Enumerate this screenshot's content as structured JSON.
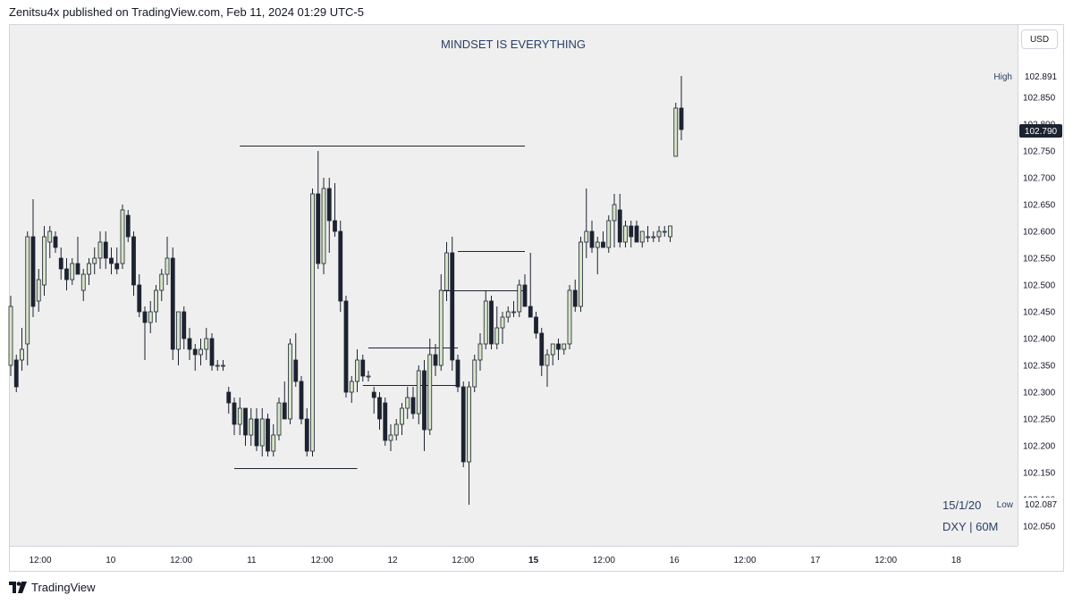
{
  "header": {
    "publisher": "Zenitsu4x published on TradingView.com, Feb 11, 2024 01:29 UTC-5"
  },
  "toolbar": {
    "currency": "USD"
  },
  "annotations": {
    "title_text": "MINDSET IS EVERYTHING",
    "date_label": "15/1/20",
    "symbol_label": "DXY | 60M"
  },
  "footer": {
    "brand": "TradingView"
  },
  "colors": {
    "up_body": "#d6e5c7",
    "down_body": "#1c2330",
    "wick": "#1c2330",
    "plot_bg": "#efefef",
    "title": "#2a3f66",
    "last_price_bg": "#1c2330"
  },
  "chart_data": {
    "type": "candlestick",
    "symbol": "DXY",
    "interval": "60M",
    "ylim": [
      102.0,
      102.92
    ],
    "y_ticks": [
      "102.850",
      "102.800",
      "102.750",
      "102.700",
      "102.650",
      "102.600",
      "102.550",
      "102.500",
      "102.450",
      "102.400",
      "102.350",
      "102.300",
      "102.250",
      "102.200",
      "102.150",
      "102.100",
      "102.050"
    ],
    "x_ticks": [
      "12:00",
      "10",
      "12:00",
      "11",
      "12:00",
      "12",
      "12:00",
      "15",
      "12:00",
      "16",
      "12:00",
      "17",
      "12:00",
      "18"
    ],
    "grid": false,
    "markers": {
      "high": {
        "label": "High",
        "value": "102.891"
      },
      "low": {
        "label": "Low",
        "value": "102.087"
      },
      "last": {
        "value": "102.790"
      }
    },
    "levels": [
      {
        "name": "high-level",
        "price": 102.76,
        "x_start": 41,
        "x_end": 92
      },
      {
        "name": "low-level",
        "price": 102.158,
        "x_start": 40,
        "x_end": 62
      },
      {
        "name": "support-level",
        "price": 102.563,
        "x_start": 80,
        "x_end": 92
      },
      {
        "name": "mid-level",
        "price": 102.49,
        "x_start": 77,
        "x_end": 92
      },
      {
        "name": "range-level",
        "price": 102.384,
        "x_start": 64,
        "x_end": 80
      },
      {
        "name": "base-level",
        "price": 102.313,
        "x_start": 63,
        "x_end": 80
      }
    ],
    "candles": [
      {
        "o": 102.35,
        "h": 102.48,
        "l": 102.33,
        "c": 102.46
      },
      {
        "o": 102.36,
        "h": 102.37,
        "l": 102.3,
        "c": 102.31
      },
      {
        "o": 102.36,
        "h": 102.42,
        "l": 102.34,
        "c": 102.38
      },
      {
        "o": 102.39,
        "h": 102.6,
        "l": 102.35,
        "c": 102.59
      },
      {
        "o": 102.59,
        "h": 102.66,
        "l": 102.44,
        "c": 102.46
      },
      {
        "o": 102.47,
        "h": 102.53,
        "l": 102.45,
        "c": 102.51
      },
      {
        "o": 102.5,
        "h": 102.61,
        "l": 102.48,
        "c": 102.59
      },
      {
        "o": 102.58,
        "h": 102.61,
        "l": 102.55,
        "c": 102.6
      },
      {
        "o": 102.59,
        "h": 102.6,
        "l": 102.56,
        "c": 102.57
      },
      {
        "o": 102.55,
        "h": 102.57,
        "l": 102.51,
        "c": 102.53
      },
      {
        "o": 102.53,
        "h": 102.55,
        "l": 102.49,
        "c": 102.51
      },
      {
        "o": 102.51,
        "h": 102.55,
        "l": 102.5,
        "c": 102.54
      },
      {
        "o": 102.54,
        "h": 102.59,
        "l": 102.52,
        "c": 102.52
      },
      {
        "o": 102.49,
        "h": 102.53,
        "l": 102.47,
        "c": 102.52
      },
      {
        "o": 102.52,
        "h": 102.55,
        "l": 102.5,
        "c": 102.54
      },
      {
        "o": 102.54,
        "h": 102.57,
        "l": 102.52,
        "c": 102.55
      },
      {
        "o": 102.55,
        "h": 102.6,
        "l": 102.53,
        "c": 102.58
      },
      {
        "o": 102.58,
        "h": 102.6,
        "l": 102.53,
        "c": 102.55
      },
      {
        "o": 102.55,
        "h": 102.57,
        "l": 102.52,
        "c": 102.54
      },
      {
        "o": 102.54,
        "h": 102.57,
        "l": 102.52,
        "c": 102.53
      },
      {
        "o": 102.54,
        "h": 102.65,
        "l": 102.53,
        "c": 102.64
      },
      {
        "o": 102.63,
        "h": 102.64,
        "l": 102.58,
        "c": 102.59
      },
      {
        "o": 102.59,
        "h": 102.6,
        "l": 102.48,
        "c": 102.5
      },
      {
        "o": 102.5,
        "h": 102.52,
        "l": 102.44,
        "c": 102.45
      },
      {
        "o": 102.45,
        "h": 102.46,
        "l": 102.36,
        "c": 102.43
      },
      {
        "o": 102.43,
        "h": 102.47,
        "l": 102.41,
        "c": 102.45
      },
      {
        "o": 102.45,
        "h": 102.5,
        "l": 102.43,
        "c": 102.49
      },
      {
        "o": 102.49,
        "h": 102.53,
        "l": 102.47,
        "c": 102.52
      },
      {
        "o": 102.52,
        "h": 102.59,
        "l": 102.5,
        "c": 102.55
      },
      {
        "o": 102.55,
        "h": 102.57,
        "l": 102.36,
        "c": 102.38
      },
      {
        "o": 102.38,
        "h": 102.45,
        "l": 102.35,
        "c": 102.45
      },
      {
        "o": 102.45,
        "h": 102.46,
        "l": 102.38,
        "c": 102.4
      },
      {
        "o": 102.4,
        "h": 102.42,
        "l": 102.36,
        "c": 102.38
      },
      {
        "o": 102.38,
        "h": 102.39,
        "l": 102.34,
        "c": 102.37
      },
      {
        "o": 102.37,
        "h": 102.4,
        "l": 102.35,
        "c": 102.38
      },
      {
        "o": 102.38,
        "h": 102.42,
        "l": 102.36,
        "c": 102.4
      },
      {
        "o": 102.4,
        "h": 102.41,
        "l": 102.34,
        "c": 102.35
      },
      {
        "o": 102.35,
        "h": 102.36,
        "l": 102.34,
        "c": 102.35
      },
      {
        "o": 102.35,
        "h": 102.36,
        "l": 102.34,
        "c": 102.35
      },
      {
        "o": 102.3,
        "h": 102.31,
        "l": 102.26,
        "c": 102.28
      },
      {
        "o": 102.28,
        "h": 102.29,
        "l": 102.22,
        "c": 102.24
      },
      {
        "o": 102.24,
        "h": 102.29,
        "l": 102.22,
        "c": 102.27
      },
      {
        "o": 102.27,
        "h": 102.27,
        "l": 102.2,
        "c": 102.22
      },
      {
        "o": 102.22,
        "h": 102.27,
        "l": 102.2,
        "c": 102.25
      },
      {
        "o": 102.25,
        "h": 102.27,
        "l": 102.19,
        "c": 102.2
      },
      {
        "o": 102.2,
        "h": 102.27,
        "l": 102.18,
        "c": 102.25
      },
      {
        "o": 102.25,
        "h": 102.26,
        "l": 102.18,
        "c": 102.19
      },
      {
        "o": 102.19,
        "h": 102.24,
        "l": 102.18,
        "c": 102.22
      },
      {
        "o": 102.22,
        "h": 102.29,
        "l": 102.21,
        "c": 102.28
      },
      {
        "o": 102.28,
        "h": 102.32,
        "l": 102.25,
        "c": 102.25
      },
      {
        "o": 102.25,
        "h": 102.4,
        "l": 102.24,
        "c": 102.39
      },
      {
        "o": 102.36,
        "h": 102.41,
        "l": 102.31,
        "c": 102.32
      },
      {
        "o": 102.32,
        "h": 102.33,
        "l": 102.24,
        "c": 102.25
      },
      {
        "o": 102.25,
        "h": 102.27,
        "l": 102.18,
        "c": 102.19
      },
      {
        "o": 102.19,
        "h": 102.68,
        "l": 102.18,
        "c": 102.67
      },
      {
        "o": 102.67,
        "h": 102.75,
        "l": 102.53,
        "c": 102.54
      },
      {
        "o": 102.54,
        "h": 102.7,
        "l": 102.52,
        "c": 102.68
      },
      {
        "o": 102.68,
        "h": 102.7,
        "l": 102.56,
        "c": 102.62
      },
      {
        "o": 102.62,
        "h": 102.69,
        "l": 102.59,
        "c": 102.6
      },
      {
        "o": 102.6,
        "h": 102.62,
        "l": 102.45,
        "c": 102.47
      },
      {
        "o": 102.47,
        "h": 102.48,
        "l": 102.29,
        "c": 102.3
      },
      {
        "o": 102.3,
        "h": 102.33,
        "l": 102.28,
        "c": 102.32
      },
      {
        "o": 102.32,
        "h": 102.38,
        "l": 102.3,
        "c": 102.36
      },
      {
        "o": 102.36,
        "h": 102.37,
        "l": 102.32,
        "c": 102.33
      },
      {
        "o": 102.33,
        "h": 102.34,
        "l": 102.32,
        "c": 102.33
      },
      {
        "o": 102.3,
        "h": 102.31,
        "l": 102.26,
        "c": 102.29
      },
      {
        "o": 102.29,
        "h": 102.3,
        "l": 102.23,
        "c": 102.25
      },
      {
        "o": 102.28,
        "h": 102.29,
        "l": 102.2,
        "c": 102.21
      },
      {
        "o": 102.21,
        "h": 102.24,
        "l": 102.19,
        "c": 102.22
      },
      {
        "o": 102.22,
        "h": 102.25,
        "l": 102.21,
        "c": 102.24
      },
      {
        "o": 102.24,
        "h": 102.28,
        "l": 102.22,
        "c": 102.27
      },
      {
        "o": 102.27,
        "h": 102.31,
        "l": 102.25,
        "c": 102.29
      },
      {
        "o": 102.29,
        "h": 102.31,
        "l": 102.25,
        "c": 102.26
      },
      {
        "o": 102.26,
        "h": 102.35,
        "l": 102.24,
        "c": 102.34
      },
      {
        "o": 102.34,
        "h": 102.36,
        "l": 102.19,
        "c": 102.23
      },
      {
        "o": 102.23,
        "h": 102.4,
        "l": 102.22,
        "c": 102.37
      },
      {
        "o": 102.37,
        "h": 102.39,
        "l": 102.33,
        "c": 102.35
      },
      {
        "o": 102.35,
        "h": 102.52,
        "l": 102.34,
        "c": 102.49
      },
      {
        "o": 102.49,
        "h": 102.58,
        "l": 102.47,
        "c": 102.56
      },
      {
        "o": 102.56,
        "h": 102.59,
        "l": 102.34,
        "c": 102.36
      },
      {
        "o": 102.36,
        "h": 102.37,
        "l": 102.3,
        "c": 102.31
      },
      {
        "o": 102.31,
        "h": 102.32,
        "l": 102.16,
        "c": 102.17
      },
      {
        "o": 102.17,
        "h": 102.32,
        "l": 102.09,
        "c": 102.31
      },
      {
        "o": 102.31,
        "h": 102.37,
        "l": 102.3,
        "c": 102.36
      },
      {
        "o": 102.36,
        "h": 102.41,
        "l": 102.34,
        "c": 102.39
      },
      {
        "o": 102.39,
        "h": 102.49,
        "l": 102.38,
        "c": 102.47
      },
      {
        "o": 102.47,
        "h": 102.48,
        "l": 102.38,
        "c": 102.39
      },
      {
        "o": 102.39,
        "h": 102.46,
        "l": 102.38,
        "c": 102.42
      },
      {
        "o": 102.42,
        "h": 102.45,
        "l": 102.39,
        "c": 102.44
      },
      {
        "o": 102.44,
        "h": 102.46,
        "l": 102.43,
        "c": 102.45
      },
      {
        "o": 102.45,
        "h": 102.47,
        "l": 102.44,
        "c": 102.45
      },
      {
        "o": 102.45,
        "h": 102.51,
        "l": 102.44,
        "c": 102.5
      },
      {
        "o": 102.5,
        "h": 102.52,
        "l": 102.46,
        "c": 102.46
      },
      {
        "o": 102.46,
        "h": 102.56,
        "l": 102.44,
        "c": 102.44
      },
      {
        "o": 102.44,
        "h": 102.45,
        "l": 102.4,
        "c": 102.41
      },
      {
        "o": 102.41,
        "h": 102.42,
        "l": 102.33,
        "c": 102.35
      },
      {
        "o": 102.35,
        "h": 102.38,
        "l": 102.31,
        "c": 102.37
      },
      {
        "o": 102.37,
        "h": 102.39,
        "l": 102.35,
        "c": 102.39
      },
      {
        "o": 102.39,
        "h": 102.4,
        "l": 102.36,
        "c": 102.38
      },
      {
        "o": 102.38,
        "h": 102.39,
        "l": 102.37,
        "c": 102.39
      },
      {
        "o": 102.39,
        "h": 102.5,
        "l": 102.38,
        "c": 102.49
      },
      {
        "o": 102.49,
        "h": 102.51,
        "l": 102.45,
        "c": 102.46
      },
      {
        "o": 102.46,
        "h": 102.59,
        "l": 102.45,
        "c": 102.58
      },
      {
        "o": 102.58,
        "h": 102.68,
        "l": 102.55,
        "c": 102.6
      },
      {
        "o": 102.6,
        "h": 102.62,
        "l": 102.56,
        "c": 102.57
      },
      {
        "o": 102.57,
        "h": 102.59,
        "l": 102.52,
        "c": 102.58
      },
      {
        "o": 102.58,
        "h": 102.6,
        "l": 102.57,
        "c": 102.57
      },
      {
        "o": 102.57,
        "h": 102.63,
        "l": 102.56,
        "c": 102.62
      },
      {
        "o": 102.62,
        "h": 102.67,
        "l": 102.57,
        "c": 102.65
      },
      {
        "o": 102.64,
        "h": 102.67,
        "l": 102.57,
        "c": 102.58
      },
      {
        "o": 102.58,
        "h": 102.62,
        "l": 102.57,
        "c": 102.61
      },
      {
        "o": 102.61,
        "h": 102.62,
        "l": 102.57,
        "c": 102.59
      },
      {
        "o": 102.61,
        "h": 102.62,
        "l": 102.58,
        "c": 102.58
      },
      {
        "o": 102.58,
        "h": 102.6,
        "l": 102.57,
        "c": 102.6
      },
      {
        "o": 102.59,
        "h": 102.61,
        "l": 102.58,
        "c": 102.59
      },
      {
        "o": 102.59,
        "h": 102.6,
        "l": 102.58,
        "c": 102.59
      },
      {
        "o": 102.59,
        "h": 102.61,
        "l": 102.58,
        "c": 102.6
      },
      {
        "o": 102.6,
        "h": 102.61,
        "l": 102.59,
        "c": 102.6
      },
      {
        "o": 102.59,
        "h": 102.61,
        "l": 102.58,
        "c": 102.61
      },
      {
        "o": 102.74,
        "h": 102.84,
        "l": 102.74,
        "c": 102.83
      },
      {
        "o": 102.83,
        "h": 102.89,
        "l": 102.77,
        "c": 102.79
      }
    ]
  }
}
